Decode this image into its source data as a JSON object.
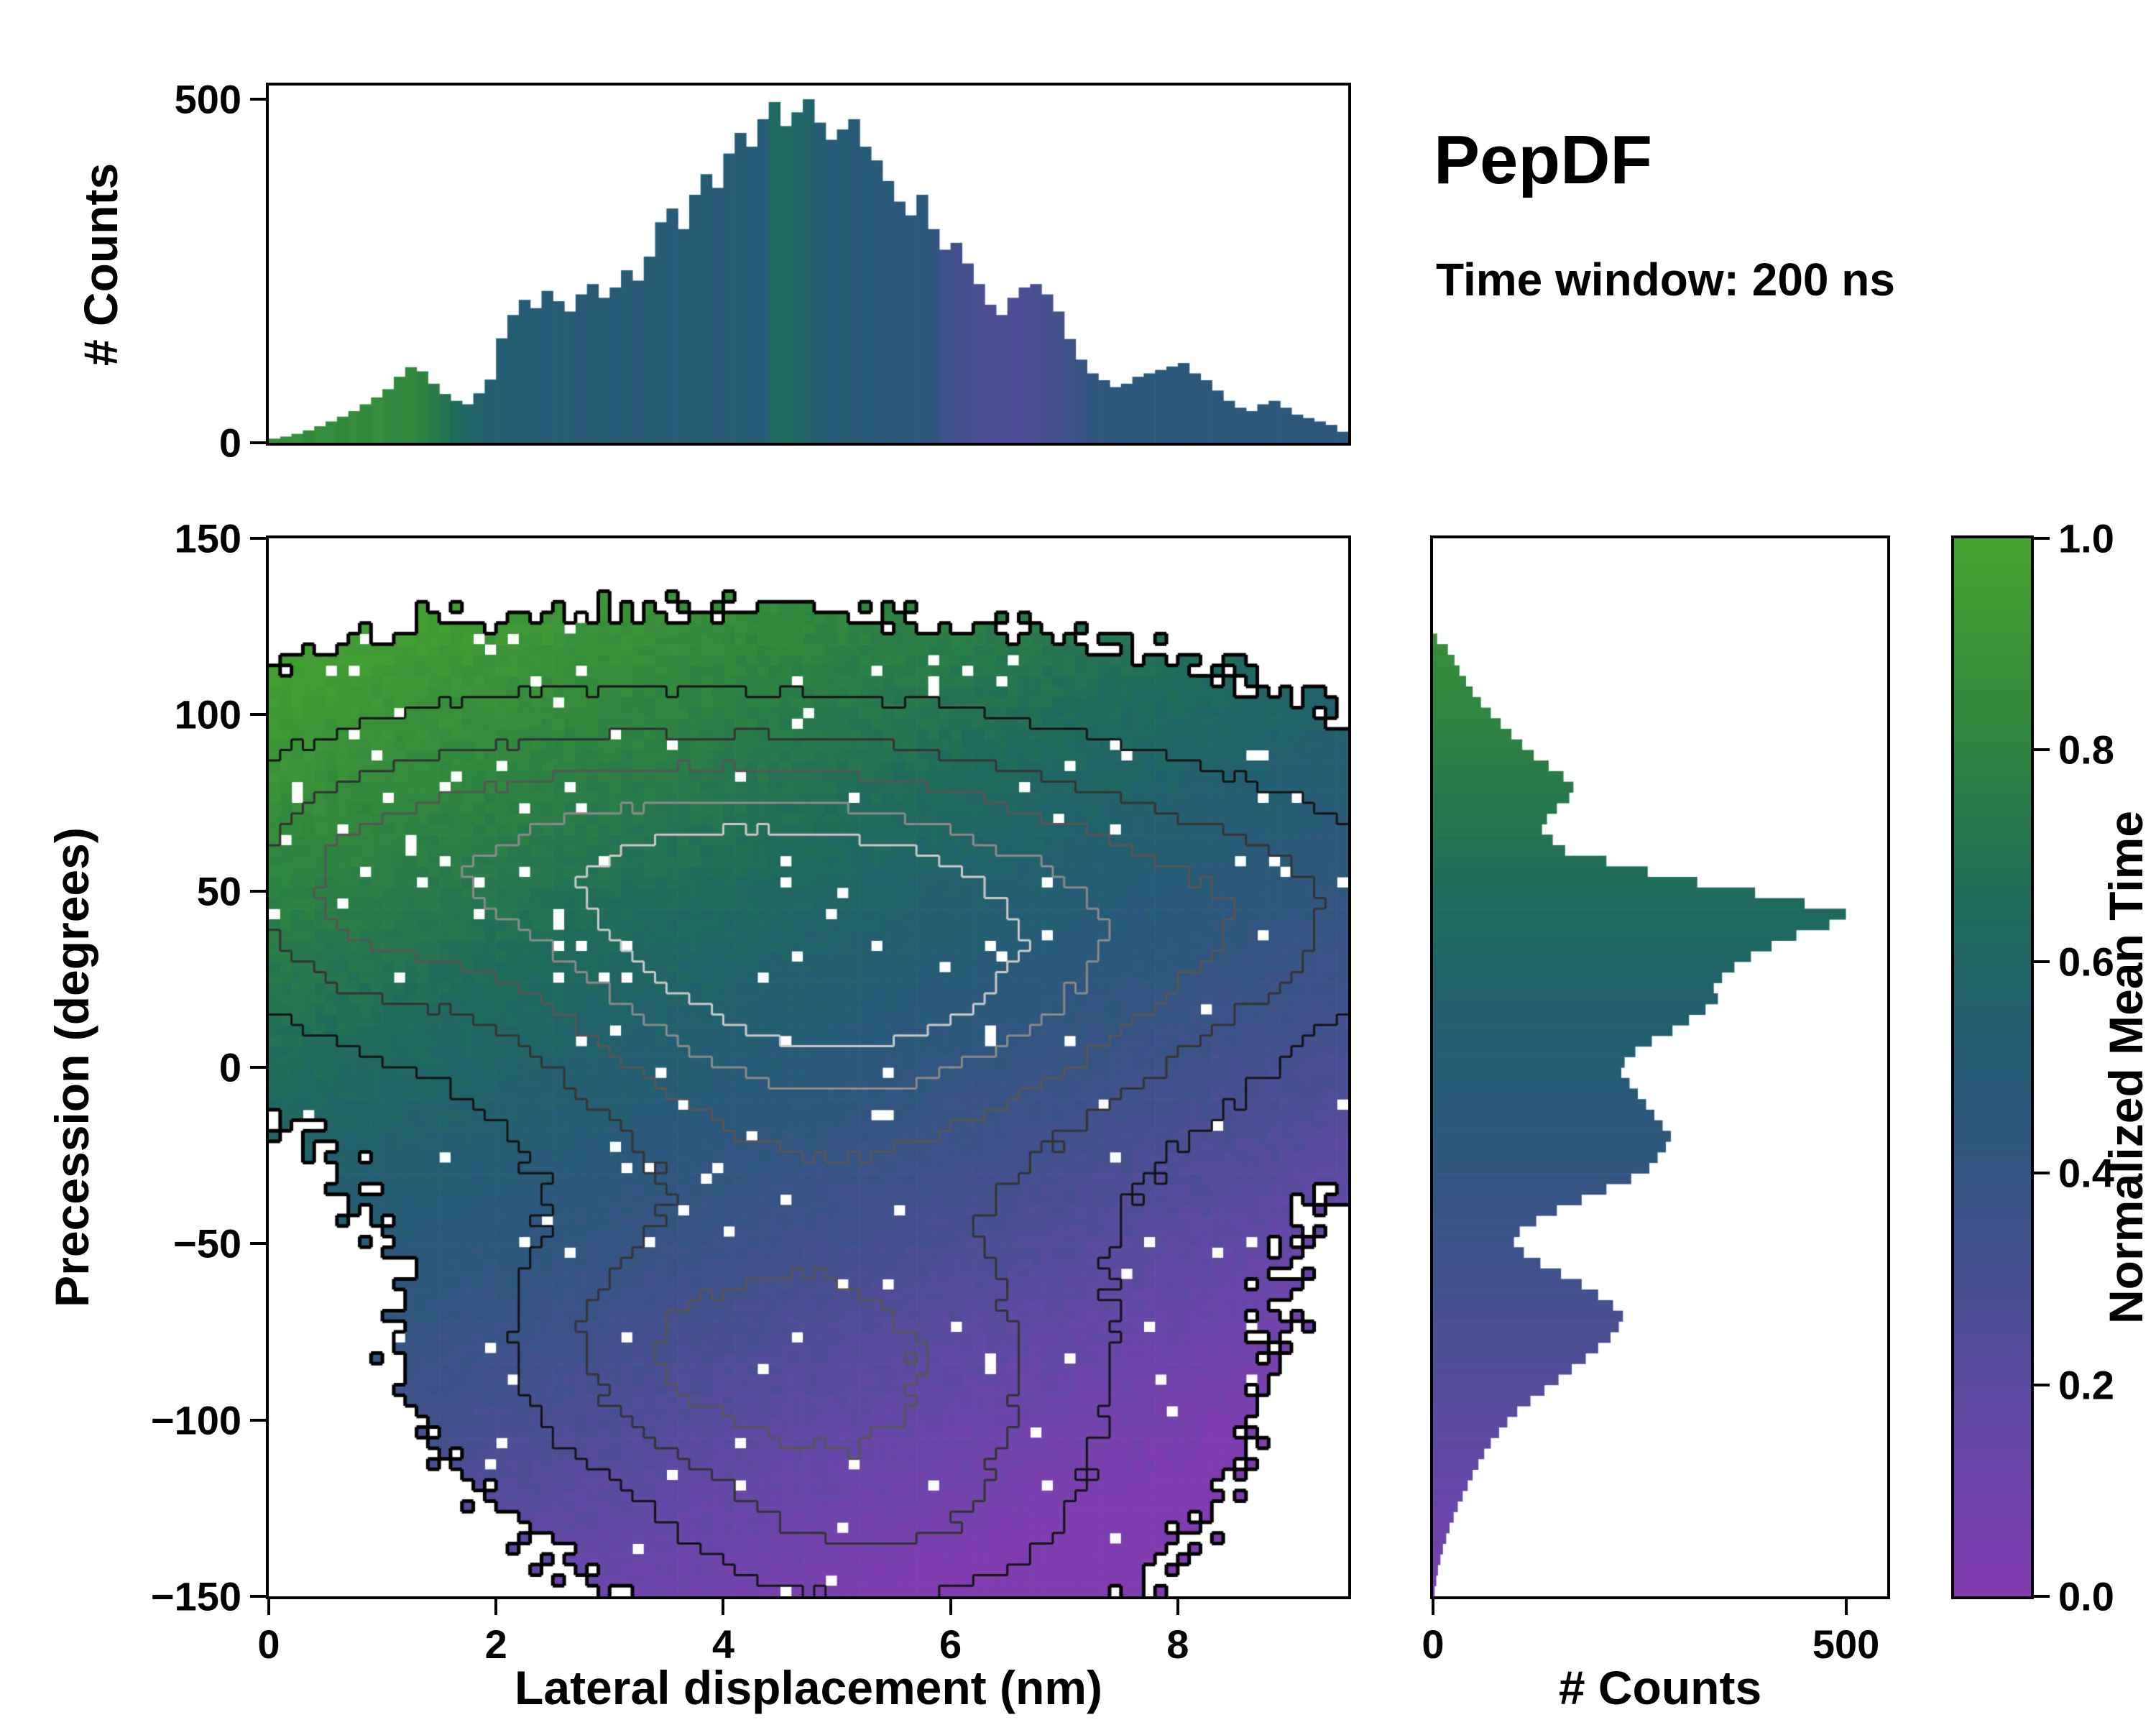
{
  "title": "PepDF",
  "subtitle": "Time window: 200 ns",
  "labels": {
    "top_ylabel": "# Counts",
    "main_xlabel": "Lateral displacement (nm)",
    "main_ylabel": "Precession (degrees)",
    "right_xlabel": "# Counts",
    "cbar_label": "Normalized Mean Time"
  },
  "colors": {
    "background": "#ffffff",
    "axis": "#000000",
    "cmap_stops": [
      [
        0.0,
        "#833cb0"
      ],
      [
        0.15,
        "#6747a8"
      ],
      [
        0.3,
        "#45508f"
      ],
      [
        0.45,
        "#2b587c"
      ],
      [
        0.55,
        "#22606f"
      ],
      [
        0.65,
        "#1f6b5c"
      ],
      [
        0.8,
        "#2e8440"
      ],
      [
        1.0,
        "#47a32e"
      ]
    ]
  },
  "chart_data": [
    {
      "id": "top_hist",
      "type": "bar",
      "orientation": "vertical",
      "ylabel": "# Counts",
      "x_range": [
        0,
        9.5
      ],
      "y_range": [
        0,
        520
      ],
      "yticks": {
        "values": [
          0,
          500
        ],
        "labels": [
          "0",
          "500"
        ]
      },
      "bin_width": 0.1,
      "counts": [
        6,
        9,
        13,
        18,
        24,
        31,
        38,
        46,
        56,
        66,
        78,
        96,
        110,
        104,
        86,
        71,
        61,
        56,
        72,
        92,
        152,
        186,
        208,
        196,
        221,
        206,
        191,
        216,
        231,
        211,
        226,
        251,
        236,
        271,
        321,
        341,
        311,
        361,
        391,
        371,
        421,
        451,
        431,
        471,
        496,
        461,
        481,
        500,
        466,
        441,
        456,
        471,
        431,
        411,
        381,
        351,
        331,
        361,
        311,
        281,
        291,
        261,
        231,
        201,
        186,
        211,
        226,
        231,
        216,
        191,
        151,
        121,
        101,
        91,
        81,
        86,
        96,
        101,
        106,
        111,
        116,
        101,
        91,
        76,
        61,
        51,
        46,
        56,
        61,
        51,
        41,
        36,
        31,
        26,
        16
      ],
      "color_t": [
        0.86,
        0.85,
        0.87,
        0.84,
        0.86,
        0.85,
        0.83,
        0.86,
        0.84,
        0.85,
        0.83,
        0.82,
        0.84,
        0.8,
        0.76,
        0.7,
        0.65,
        0.6,
        0.57,
        0.55,
        0.53,
        0.52,
        0.5,
        0.51,
        0.49,
        0.5,
        0.52,
        0.48,
        0.5,
        0.51,
        0.49,
        0.5,
        0.48,
        0.52,
        0.5,
        0.49,
        0.51,
        0.5,
        0.52,
        0.48,
        0.5,
        0.51,
        0.49,
        0.5,
        0.62,
        0.64,
        0.6,
        0.58,
        0.5,
        0.49,
        0.51,
        0.48,
        0.5,
        0.47,
        0.49,
        0.46,
        0.45,
        0.44,
        0.42,
        0.35,
        0.32,
        0.3,
        0.28,
        0.27,
        0.28,
        0.26,
        0.27,
        0.28,
        0.3,
        0.32,
        0.35,
        0.38,
        0.42,
        0.44,
        0.45,
        0.46,
        0.44,
        0.45,
        0.47,
        0.46,
        0.45,
        0.44,
        0.46,
        0.45,
        0.47,
        0.46,
        0.45,
        0.44,
        0.45,
        0.46,
        0.44,
        0.45,
        0.43,
        0.44,
        0.45
      ]
    },
    {
      "id": "main",
      "type": "heatmap",
      "xlabel": "Lateral displacement (nm)",
      "ylabel": "Precession (degrees)",
      "value_label": "Normalized Mean Time",
      "x_range": [
        0,
        9.5
      ],
      "y_range": [
        -150,
        150
      ],
      "xticks": {
        "values": [
          0,
          2,
          4,
          6,
          8
        ],
        "labels": [
          "0",
          "2",
          "4",
          "6",
          "8"
        ]
      },
      "yticks": {
        "values": [
          150,
          100,
          50,
          0,
          -50,
          -100,
          -150
        ],
        "labels": [
          "150",
          "100",
          "50",
          "0",
          "−50",
          "−100",
          "−150"
        ]
      },
      "nx": 95,
      "ny": 100,
      "density_gaussians": [
        [
          2.1,
          60,
          1.5,
          28,
          1.0
        ],
        [
          4.6,
          45,
          1.5,
          32,
          1.5
        ],
        [
          7.2,
          42,
          1.5,
          32,
          0.85
        ],
        [
          5.0,
          0,
          1.9,
          40,
          0.95
        ],
        [
          5.2,
          -88,
          1.5,
          30,
          0.95
        ],
        [
          3.5,
          -80,
          1.0,
          22,
          0.5
        ],
        [
          5.4,
          -130,
          1.1,
          18,
          0.45
        ],
        [
          0.6,
          45,
          0.8,
          25,
          0.5
        ],
        [
          8.9,
          45,
          0.8,
          20,
          0.35
        ]
      ],
      "density_threshold": 0.07,
      "density_noise": 0.06,
      "mean_time_model": {
        "base": 0.52,
        "y_coeff": 0.42,
        "x_coeff": -0.04,
        "x_ref": 3.5,
        "noise": 0.05
      },
      "speckle": {
        "prob": 0.018,
        "prob_green": 0.05,
        "green_t": 0.72
      },
      "contour_levels": [
        {
          "level": 0.07,
          "color": "#000000",
          "width": 5
        },
        {
          "level": 0.35,
          "color": "#141414",
          "width": 3
        },
        {
          "level": 0.7,
          "color": "#333333",
          "width": 3
        },
        {
          "level": 1.05,
          "color": "#565656",
          "width": 3
        },
        {
          "level": 1.45,
          "color": "#8a8a8a",
          "width": 3
        },
        {
          "level": 1.8,
          "color": "#c9c9c9",
          "width": 3
        }
      ]
    },
    {
      "id": "right_hist",
      "type": "barh",
      "orientation": "horizontal",
      "xlabel": "# Counts",
      "x_range": [
        0,
        550
      ],
      "y_range": [
        -150,
        150
      ],
      "xticks": {
        "values": [
          0,
          500
        ],
        "labels": [
          "0",
          "500"
        ]
      },
      "bin_height": 3,
      "counts": [
        0,
        0,
        0,
        0,
        0,
        0,
        0,
        0,
        0,
        5,
        18,
        26,
        32,
        40,
        48,
        58,
        70,
        82,
        95,
        108,
        122,
        140,
        158,
        170,
        165,
        150,
        138,
        132,
        145,
        160,
        210,
        260,
        320,
        390,
        450,
        500,
        480,
        440,
        410,
        385,
        365,
        350,
        340,
        345,
        330,
        310,
        290,
        265,
        245,
        232,
        228,
        238,
        248,
        258,
        268,
        278,
        288,
        282,
        272,
        262,
        240,
        210,
        180,
        150,
        125,
        105,
        98,
        110,
        130,
        155,
        180,
        200,
        218,
        230,
        225,
        215,
        200,
        185,
        168,
        152,
        135,
        118,
        102,
        90,
        80,
        70,
        62,
        55,
        48,
        42,
        36,
        30,
        25,
        20,
        16,
        12,
        9,
        6,
        4,
        2
      ],
      "color_t": [
        0.95,
        0.94,
        0.93,
        0.92,
        0.91,
        0.91,
        0.9,
        0.89,
        0.88,
        0.87,
        0.86,
        0.85,
        0.84,
        0.83,
        0.82,
        0.82,
        0.81,
        0.8,
        0.79,
        0.78,
        0.77,
        0.76,
        0.75,
        0.74,
        0.73,
        0.73,
        0.72,
        0.71,
        0.7,
        0.69,
        0.68,
        0.67,
        0.66,
        0.65,
        0.64,
        0.64,
        0.63,
        0.62,
        0.61,
        0.6,
        0.59,
        0.58,
        0.57,
        0.56,
        0.55,
        0.55,
        0.54,
        0.53,
        0.52,
        0.51,
        0.5,
        0.49,
        0.48,
        0.47,
        0.46,
        0.46,
        0.45,
        0.44,
        0.43,
        0.42,
        0.41,
        0.4,
        0.39,
        0.38,
        0.37,
        0.37,
        0.36,
        0.35,
        0.34,
        0.33,
        0.32,
        0.31,
        0.3,
        0.29,
        0.28,
        0.28,
        0.27,
        0.26,
        0.25,
        0.24,
        0.23,
        0.22,
        0.21,
        0.2,
        0.19,
        0.19,
        0.18,
        0.17,
        0.16,
        0.15,
        0.14,
        0.13,
        0.12,
        0.11,
        0.1,
        0.1,
        0.09,
        0.08,
        0.07,
        0.06
      ]
    },
    {
      "id": "colorbar",
      "type": "colorbar",
      "label": "Normalized Mean Time",
      "range": [
        0,
        1
      ],
      "ticks": {
        "values": [
          1.0,
          0.8,
          0.6,
          0.4,
          0.2,
          0.0
        ],
        "labels": [
          "1.0",
          "0.8",
          "0.6",
          "0.4",
          "0.2",
          "0.0"
        ]
      }
    }
  ]
}
